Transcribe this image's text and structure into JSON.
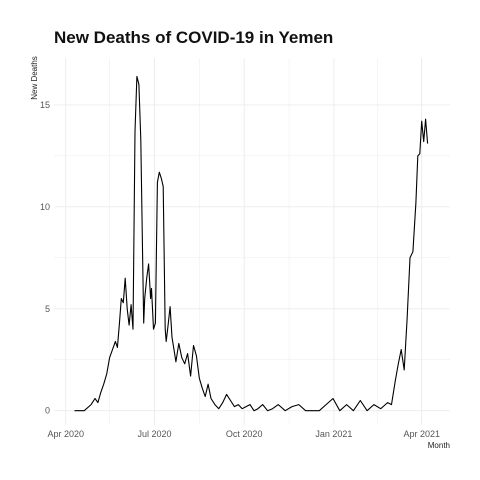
{
  "chart_data": {
    "type": "line",
    "title": "New Deaths of COVID-19 in Yemen",
    "xlabel": "Month",
    "ylabel": "New Deaths",
    "x_ticks": [
      "Apr 2020",
      "Jul 2020",
      "Oct 2020",
      "Jan 2021",
      "Apr 2021"
    ],
    "y_ticks": [
      "0",
      "5",
      "10",
      "15"
    ],
    "xlim": [
      "2020-03-20",
      "2021-04-30"
    ],
    "ylim": [
      -0.7,
      17.3
    ],
    "grid": true,
    "series": [
      {
        "x": [
          "2020-04-10",
          "2020-04-20",
          "2020-04-27",
          "2020-05-01",
          "2020-05-04",
          "2020-05-07",
          "2020-05-10",
          "2020-05-13",
          "2020-05-16",
          "2020-05-19",
          "2020-05-22",
          "2020-05-24",
          "2020-05-26",
          "2020-05-28",
          "2020-05-30",
          "2020-06-01",
          "2020-06-03",
          "2020-06-05",
          "2020-06-07",
          "2020-06-09",
          "2020-06-11",
          "2020-06-13",
          "2020-06-15",
          "2020-06-17",
          "2020-06-19",
          "2020-06-20",
          "2020-06-21",
          "2020-06-22",
          "2020-06-23",
          "2020-06-25",
          "2020-06-27",
          "2020-06-28",
          "2020-06-30",
          "2020-07-02",
          "2020-07-04",
          "2020-07-06",
          "2020-07-08",
          "2020-07-10",
          "2020-07-12",
          "2020-07-13",
          "2020-07-15",
          "2020-07-17",
          "2020-07-19",
          "2020-07-21",
          "2020-07-23",
          "2020-07-26",
          "2020-07-29",
          "2020-08-01",
          "2020-08-04",
          "2020-08-07",
          "2020-08-10",
          "2020-08-13",
          "2020-08-16",
          "2020-08-19",
          "2020-08-22",
          "2020-08-25",
          "2020-08-28",
          "2020-09-01",
          "2020-09-05",
          "2020-09-09",
          "2020-09-13",
          "2020-09-17",
          "2020-09-21",
          "2020-09-25",
          "2020-09-29",
          "2020-10-03",
          "2020-10-07",
          "2020-10-11",
          "2020-10-15",
          "2020-10-20",
          "2020-10-25",
          "2020-10-30",
          "2020-11-05",
          "2020-11-12",
          "2020-11-19",
          "2020-11-26",
          "2020-12-03",
          "2020-12-10",
          "2020-12-17",
          "2020-12-24",
          "2020-12-31",
          "2021-01-07",
          "2021-01-14",
          "2021-01-21",
          "2021-01-28",
          "2021-02-04",
          "2021-02-11",
          "2021-02-18",
          "2021-02-25",
          "2021-03-01",
          "2021-03-05",
          "2021-03-08",
          "2021-03-11",
          "2021-03-14",
          "2021-03-17",
          "2021-03-20",
          "2021-03-23",
          "2021-03-26",
          "2021-03-28",
          "2021-03-30",
          "2021-04-01",
          "2021-04-03",
          "2021-04-05",
          "2021-04-07"
        ],
        "y": [
          0,
          0,
          0.3,
          0.6,
          0.4,
          0.9,
          1.3,
          1.8,
          2.6,
          3.0,
          3.4,
          3.1,
          4.2,
          5.5,
          5.3,
          6.5,
          5.0,
          4.2,
          5.2,
          4.0,
          13.7,
          16.4,
          16.0,
          13.3,
          7.0,
          4.3,
          5.5,
          6.0,
          6.5,
          7.2,
          5.5,
          6.0,
          4.0,
          4.3,
          11.2,
          11.7,
          11.4,
          11.0,
          4.0,
          3.4,
          4.2,
          5.1,
          3.6,
          3.0,
          2.4,
          3.3,
          2.6,
          2.3,
          2.8,
          1.7,
          3.2,
          2.7,
          1.6,
          1.1,
          0.7,
          1.3,
          0.6,
          0.3,
          0.1,
          0.4,
          0.8,
          0.5,
          0.2,
          0.3,
          0.1,
          0.2,
          0.3,
          0.0,
          0.1,
          0.3,
          0.0,
          0.1,
          0.3,
          0.0,
          0.2,
          0.3,
          0.0,
          0.0,
          0.0,
          0.3,
          0.6,
          0.0,
          0.3,
          0.0,
          0.5,
          0.0,
          0.3,
          0.1,
          0.4,
          0.3,
          1.5,
          2.3,
          3.0,
          2.0,
          4.5,
          7.5,
          7.8,
          10.2,
          12.5,
          12.6,
          14.2,
          13.2,
          14.3,
          13.1
        ]
      }
    ]
  }
}
